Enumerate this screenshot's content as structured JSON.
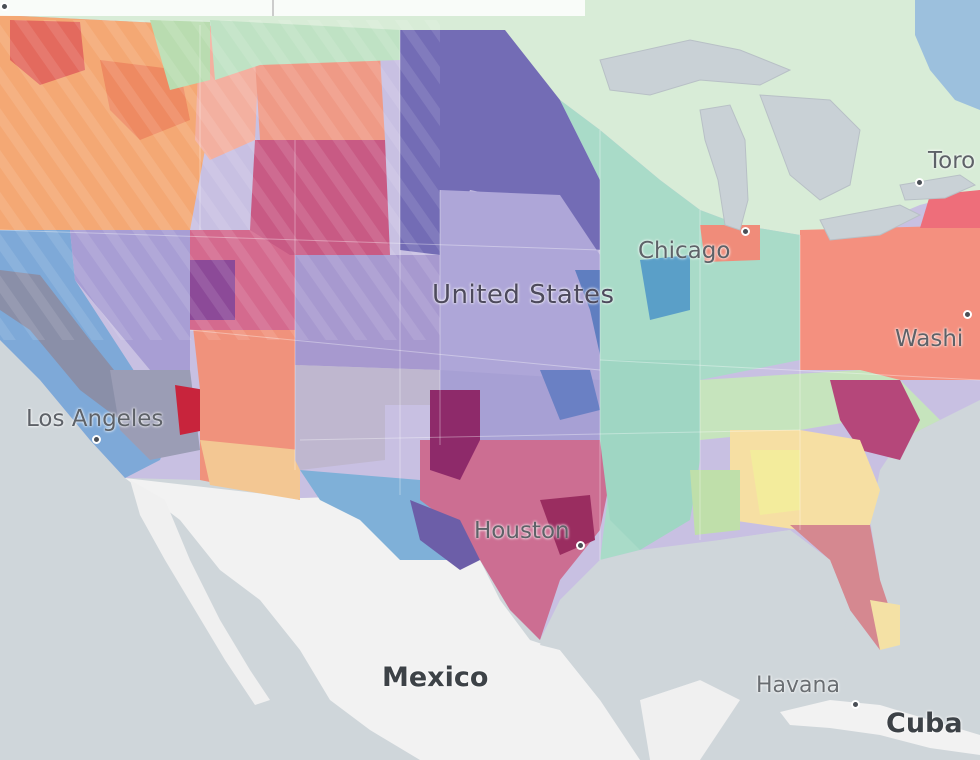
{
  "map": {
    "labels": {
      "country_us": "United States",
      "country_mexico": "Mexico",
      "country_cuba": "Cuba",
      "city_los_angeles": "Los Angeles",
      "city_houston": "Houston",
      "city_chicago": "Chicago",
      "city_washington": "Washi",
      "city_toronto": "Toro",
      "city_havana": "Havana"
    },
    "colors": {
      "water": "#cfd6da",
      "land_other": "#f0f0f0",
      "canada": "#d7ebd6",
      "lakes": "#c9d1d6",
      "east_teal": "#a8d8c6",
      "central_purple": "#a99fd2",
      "deep_purple": "#6f66b0",
      "texas_magenta": "#c7588c",
      "west_orange": "#f2a36b",
      "west_salmon": "#ef8f77",
      "california_blue": "#7aa8d8",
      "northeast_salmon": "#f38e82",
      "southeast_yellow": "#f6dca0",
      "southeast_green": "#c5e3bc"
    }
  }
}
